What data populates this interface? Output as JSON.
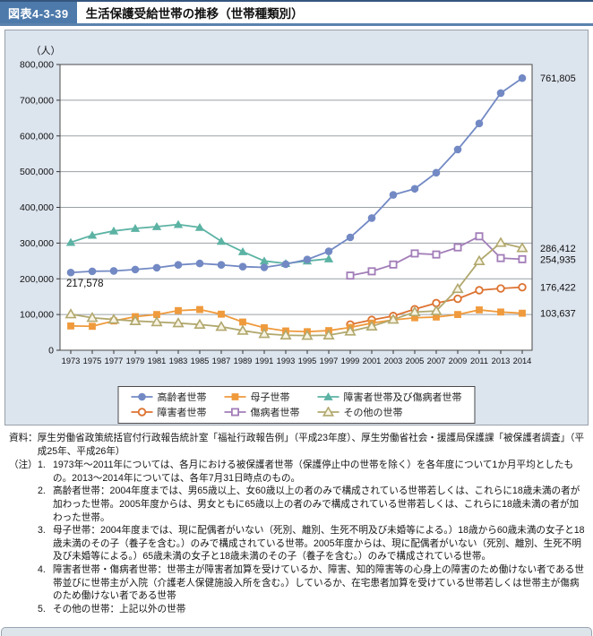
{
  "header": {
    "badge": "図表4-3-39",
    "title": "生活保護受給世帯の推移（世帯種類別）"
  },
  "chart_data": {
    "type": "line",
    "title": "生活保護受給世帯の推移（世帯種類別）",
    "unit_label": "（人）",
    "x_categories": [
      "1973",
      "1975",
      "1977",
      "1979",
      "1981",
      "1983",
      "1985",
      "1987",
      "1989",
      "1991",
      "1993",
      "1995",
      "1997",
      "1999",
      "2001",
      "2003",
      "2005",
      "2007",
      "2009",
      "2011",
      "2013",
      "2014"
    ],
    "ylim": [
      0,
      800000
    ],
    "ytick_values": [
      0,
      100000,
      200000,
      300000,
      400000,
      500000,
      600000,
      700000,
      800000
    ],
    "ytick_labels": [
      "0",
      "100,000",
      "200,000",
      "300,000",
      "400,000",
      "500,000",
      "600,000",
      "700,000",
      "800,000"
    ],
    "grid": "horizontal",
    "legend_position": "bottom",
    "series": [
      {
        "name": "高齢者世帯",
        "marker": "circle-filled",
        "color": "#7289c4",
        "values": [
          217578,
          221000,
          222000,
          226000,
          231000,
          239000,
          243000,
          239000,
          234000,
          232000,
          241000,
          254000,
          277000,
          316000,
          370000,
          435000,
          452000,
          497000,
          562000,
          635000,
          720000,
          761805
        ]
      },
      {
        "name": "母子世帯",
        "marker": "square-filled",
        "color": "#ef9a3c",
        "values": [
          68000,
          67000,
          82000,
          94000,
          100000,
          111000,
          114000,
          101000,
          79000,
          63000,
          54000,
          52000,
          55000,
          64000,
          76000,
          85000,
          91000,
          93000,
          100000,
          113000,
          107000,
          103637
        ]
      },
      {
        "name": "障害者世帯及び傷病者世帯",
        "marker": "triangle-filled",
        "color": "#5cb3a4",
        "values": [
          302000,
          322000,
          334000,
          341000,
          346000,
          352000,
          344000,
          305000,
          276000,
          250000,
          243000,
          250000,
          256000,
          null,
          null,
          null,
          null,
          null,
          null,
          null,
          null,
          null
        ]
      },
      {
        "name": "障害者世帯",
        "marker": "circle-open",
        "color": "#dd7230",
        "values": [
          null,
          null,
          null,
          null,
          null,
          null,
          null,
          null,
          null,
          null,
          null,
          null,
          null,
          72000,
          85000,
          96000,
          115000,
          132000,
          144000,
          168000,
          173000,
          176422
        ]
      },
      {
        "name": "傷病者世帯",
        "marker": "square-open",
        "color": "#a27db8",
        "values": [
          null,
          null,
          null,
          null,
          null,
          null,
          null,
          null,
          null,
          null,
          null,
          null,
          null,
          209000,
          221000,
          240000,
          271000,
          268000,
          288000,
          319000,
          258000,
          254935
        ]
      },
      {
        "name": "その他の世帯",
        "marker": "triangle-open",
        "color": "#b1a86e",
        "values": [
          101000,
          91000,
          86000,
          82000,
          79000,
          76000,
          72000,
          66000,
          55000,
          46000,
          42000,
          41000,
          42000,
          53000,
          67000,
          86000,
          107000,
          110000,
          172000,
          250000,
          301000,
          286412
        ]
      }
    ],
    "legend_order": [
      0,
      1,
      2,
      3,
      4,
      5
    ],
    "start_annotation": {
      "text": "217,578",
      "value": 217578,
      "x_index": 0
    },
    "right_labels": [
      {
        "text": "761,805",
        "value": 761805
      },
      {
        "text": "286,412",
        "value": 286412
      },
      {
        "text": "254,935",
        "value": 254935
      },
      {
        "text": "176,422",
        "value": 176422
      },
      {
        "text": "103,637",
        "value": 103637
      }
    ]
  },
  "notes": {
    "source_label": "資料：",
    "source_text": "厚生労働省政策統括官付行政報告統計室「福祉行政報告例」（平成23年度）、厚生労働省社会・援護局保護課「被保護者調査」（平成25年、平成26年）",
    "note_label": "（注）",
    "items": [
      {
        "num": "1.",
        "text": "1973年～2011年については、各月における被保護者世帯（保護停止中の世帯を除く）を各年度について1か月平均としたもの。2013～2014年については、各年7月31日時点のもの。"
      },
      {
        "num": "2.",
        "text": "高齢者世帯：2004年度までは、男65歳以上、女60歳以上の者のみで構成されている世帯若しくは、これらに18歳未満の者が加わった世帯。2005年度からは、男女ともに65歳以上の者のみで構成されている世帯若しくは、これらに18歳未満の者が加わった世帯。"
      },
      {
        "num": "3.",
        "text": "母子世帯：2004年度までは、現に配偶者がいない（死別、離別、生死不明及び未婚等による。）18歳から60歳未満の女子と18歳未満のその子（養子を含む。）のみで構成されている世帯。2005年度からは、現に配偶者がいない（死別、離別、生死不明及び未婚等による。）65歳未満の女子と18歳未満のその子（養子を含む。）のみで構成されている世帯。"
      },
      {
        "num": "4.",
        "text": "障害者世帯・傷病者世帯：世帯主が障害者加算を受けているか、障害、知的障害等の心身上の障害のため働けない者である世帯並びに世帯主が入院（介護老人保健施設入所を含む。）しているか、在宅患者加算を受けている世帯若しくは世帯主が傷病のため働けない者である世帯"
      },
      {
        "num": "5.",
        "text": "その他の世帯：上記以外の世帯"
      }
    ]
  },
  "colors": {
    "panel_bg": "#dce4ee",
    "plot_bg": "#ffffff",
    "gridline": "#9aa0a6",
    "plot_border": "#4a4a4a",
    "badge_bg": "#4d7aab",
    "title_rule": "#5b82ae"
  }
}
